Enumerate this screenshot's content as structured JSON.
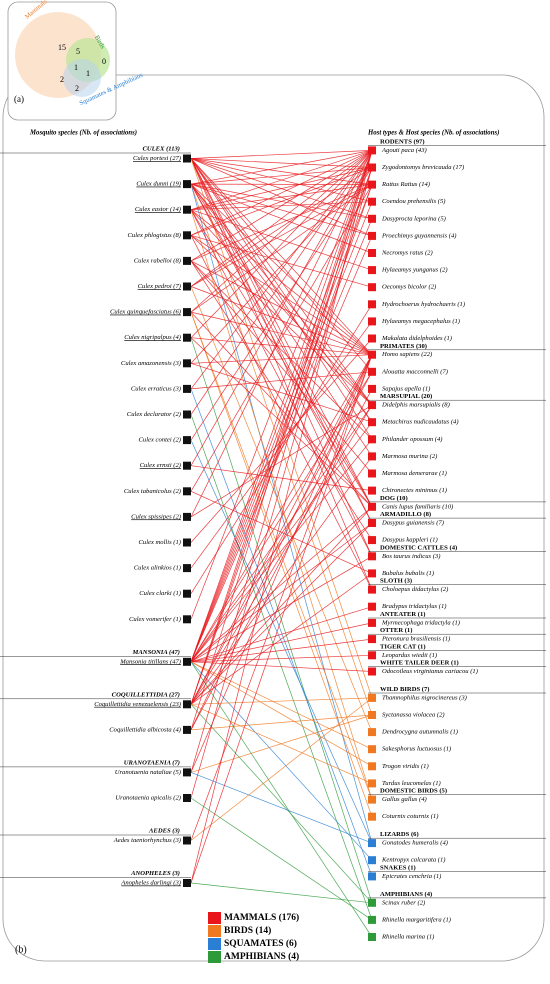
{
  "venn": {
    "label": "(a)",
    "sets": [
      "Mammals",
      "Birds",
      "Squamates & Amphibians"
    ],
    "counts": [
      "15",
      "5",
      "0",
      "1",
      "1",
      "2",
      "2"
    ]
  },
  "panel": {
    "label": "(b)",
    "left_header": "Mosquito species (Nb. of associations)",
    "right_header": "Host types & Host species (Nb. of associations)"
  },
  "left": [
    {
      "text": "CULEX (113)",
      "group": true
    },
    {
      "text": "Culex portesi (27)",
      "u": true
    },
    {
      "text": "Culex dunni (19)",
      "u": true
    },
    {
      "text": "Culex eastor (14)",
      "u": true
    },
    {
      "text": "Culex phlogistus (8)"
    },
    {
      "text": "Culex rabelloi (8)"
    },
    {
      "text": "Culex pedroi (7)",
      "u": true
    },
    {
      "text": "Culex quinquefasciatus (6)",
      "u": true
    },
    {
      "text": "Culex nigripalpus (4)",
      "u": true
    },
    {
      "text": "Culex amazonensis (3)"
    },
    {
      "text": "Culex erraticus (3)"
    },
    {
      "text": "Culex declarator (2)"
    },
    {
      "text": "Culex contei (2)"
    },
    {
      "text": "Culex ernsti (2)",
      "u": true
    },
    {
      "text": "Culex tabanicolus (2)"
    },
    {
      "text": "Culex spissipes (2)",
      "u": true
    },
    {
      "text": "Culex mollis (1)"
    },
    {
      "text": "Culex alinkios (1)"
    },
    {
      "text": "Culex clarki (1)"
    },
    {
      "text": "Culex vomerifer (1)"
    },
    {
      "text": "MANSONIA (47)",
      "group": true
    },
    {
      "text": "Mansonia titillans (47)",
      "u": true
    },
    {
      "text": "COQUILLETTIDIA (27)",
      "group": true
    },
    {
      "text": "Coquillettidia venezuelensis (23)",
      "u": true
    },
    {
      "text": "Coquillettidia albicosta (4)"
    },
    {
      "text": "URANOTAENIA (7)",
      "group": true
    },
    {
      "text": "Uranotaenia nataliae (5)"
    },
    {
      "text": "Uranotaenia apicalis (2)"
    },
    {
      "text": "AEDES (3)",
      "group": true
    },
    {
      "text": "Aedes taeniorhynchus (3)"
    },
    {
      "text": "ANOPHELES (3)",
      "group": true
    },
    {
      "text": "Anopheles darlingi (3)",
      "u": true
    }
  ],
  "right": [
    {
      "text": "RODENTS (97)",
      "group": true,
      "class": 0
    },
    {
      "text": "Agouti paca (43)",
      "class": 0
    },
    {
      "text": "Zygodontomys brevicauda (17)",
      "class": 0
    },
    {
      "text": "Rattus Rattus (14)",
      "class": 0
    },
    {
      "text": "Coendou prehensilis (5)",
      "class": 0
    },
    {
      "text": "Dasyprocta leporina (5)",
      "class": 0
    },
    {
      "text": "Proechimys guyannensis (4)",
      "class": 0
    },
    {
      "text": "Necromys ratus (2)",
      "class": 0
    },
    {
      "text": "Hylaeamys yunganus (2)",
      "class": 0
    },
    {
      "text": "Oecomys bicolor (2)",
      "class": 0
    },
    {
      "text": "Hydrochoerus hydrochaeris (1)",
      "class": 0
    },
    {
      "text": "Hylaeamys megacephalus (1)",
      "class": 0
    },
    {
      "text": "Makalata didelphoides (1)",
      "class": 0
    },
    {
      "text": "PRIMATES (30)",
      "group": true,
      "class": 0
    },
    {
      "text": "Homo sapiens (22)",
      "class": 0
    },
    {
      "text": "Alouatta macconnelli (7)",
      "class": 0
    },
    {
      "text": "Sapajus apella (1)",
      "class": 0
    },
    {
      "text": "MARSUPIAL (20)",
      "group": true,
      "class": 0
    },
    {
      "text": "Didelphis marsupialis (8)",
      "class": 0
    },
    {
      "text": "Metachirus nudicaudatus (4)",
      "class": 0
    },
    {
      "text": "Philander opossum (4)",
      "class": 0
    },
    {
      "text": "Marmosa murina (2)",
      "class": 0
    },
    {
      "text": "Marmosa demerarae (1)",
      "class": 0
    },
    {
      "text": "Chironectes minimus (1)",
      "class": 0
    },
    {
      "text": "DOG (10)",
      "group": true,
      "class": 0
    },
    {
      "text": "Canis lupus familiaris (10)",
      "class": 0
    },
    {
      "text": "ARMADILLO (8)",
      "group": true,
      "class": 0
    },
    {
      "text": "Dasypus guianensis (7)",
      "class": 0
    },
    {
      "text": "Dasypus kappleri (1)",
      "class": 0
    },
    {
      "text": "DOMESTIC CATTLES (4)",
      "group": true,
      "class": 0
    },
    {
      "text": "Bos taurus indicus (3)",
      "class": 0
    },
    {
      "text": "Bubalus bubalis (1)",
      "class": 0
    },
    {
      "text": "SLOTH (3)",
      "group": true,
      "class": 0
    },
    {
      "text": "Choloepus didactylus (2)",
      "class": 0
    },
    {
      "text": "Bradypus tridactylus (1)",
      "class": 0
    },
    {
      "text": "ANTEATER (1)",
      "group": true,
      "class": 0
    },
    {
      "text": "Myrmecophaga tridactyla (1)",
      "class": 0
    },
    {
      "text": "OTTER (1)",
      "group": true,
      "class": 0
    },
    {
      "text": "Pteronura brasiliensis (1)",
      "class": 0
    },
    {
      "text": "TIGER CAT (1)",
      "group": true,
      "class": 0
    },
    {
      "text": "Leopardus wiedii (1)",
      "class": 0
    },
    {
      "text": "WHITE TAILER DEER (1)",
      "group": true,
      "class": 0
    },
    {
      "text": "Odocoileus virginianus cariacou (1)",
      "class": 0
    },
    {
      "text": "WILD BIRDS (7)",
      "group": true,
      "class": 1
    },
    {
      "text": "Thamnophilus nigrocinereus (3)",
      "class": 1
    },
    {
      "text": "Syctanassa violacea (2)",
      "class": 1
    },
    {
      "text": "Dendrocygna autumnalis (1)",
      "class": 1
    },
    {
      "text": "Sakesphorus luctuosus (1)",
      "class": 1
    },
    {
      "text": "Trogon viridis (1)",
      "class": 1
    },
    {
      "text": "Turdus leucomelas (1)",
      "class": 1
    },
    {
      "text": "DOMESTIC BIRDS (5)",
      "group": true,
      "class": 1
    },
    {
      "text": "Gallus gallus (4)",
      "class": 1
    },
    {
      "text": "Coturnix coturnix (1)",
      "class": 1
    },
    {
      "text": "LIZARDS (6)",
      "group": true,
      "class": 2
    },
    {
      "text": "Gonatodes humeralis (4)",
      "class": 2
    },
    {
      "text": "Kentropyx calcarata (1)",
      "class": 2
    },
    {
      "text": "SNAKES (1)",
      "group": true,
      "class": 2
    },
    {
      "text": "Epicrates cenchria (1)",
      "class": 2
    },
    {
      "text": "AMPHIBIANS (4)",
      "group": true,
      "class": 3
    },
    {
      "text": "Scinax ruber (2)",
      "class": 3
    },
    {
      "text": "Rhinella margaritifera (1)",
      "class": 3
    },
    {
      "text": "Rhinella marina (1)",
      "class": 3
    }
  ],
  "classes": [
    {
      "name": "MAMMALS (176)",
      "color": "#e8161b"
    },
    {
      "name": "BIRDS (14)",
      "color": "#f07820"
    },
    {
      "name": "SQUAMATES (6)",
      "color": "#2a7fd4"
    },
    {
      "name": "AMPHIBIANS (4)",
      "color": "#2f9a3a"
    }
  ],
  "links": [
    [
      1,
      1
    ],
    [
      1,
      2
    ],
    [
      1,
      3
    ],
    [
      1,
      4
    ],
    [
      1,
      5
    ],
    [
      1,
      6
    ],
    [
      1,
      14
    ],
    [
      1,
      15
    ],
    [
      1,
      18
    ],
    [
      1,
      19
    ],
    [
      1,
      20
    ],
    [
      1,
      25
    ],
    [
      1,
      27
    ],
    [
      1,
      30
    ],
    [
      1,
      33
    ],
    [
      1,
      44
    ],
    [
      2,
      1
    ],
    [
      2,
      2
    ],
    [
      2,
      3
    ],
    [
      2,
      5
    ],
    [
      2,
      6
    ],
    [
      2,
      7
    ],
    [
      2,
      14
    ],
    [
      2,
      18
    ],
    [
      2,
      19
    ],
    [
      2,
      21
    ],
    [
      2,
      25
    ],
    [
      2,
      27
    ],
    [
      2,
      45
    ],
    [
      2,
      54
    ],
    [
      3,
      1
    ],
    [
      3,
      2
    ],
    [
      3,
      3
    ],
    [
      3,
      4
    ],
    [
      3,
      8
    ],
    [
      3,
      14
    ],
    [
      3,
      18
    ],
    [
      3,
      25
    ],
    [
      3,
      30
    ],
    [
      3,
      51
    ],
    [
      4,
      1
    ],
    [
      4,
      2
    ],
    [
      4,
      9
    ],
    [
      4,
      14
    ],
    [
      4,
      18
    ],
    [
      4,
      33
    ],
    [
      5,
      1
    ],
    [
      5,
      3
    ],
    [
      5,
      14
    ],
    [
      5,
      20
    ],
    [
      5,
      22
    ],
    [
      5,
      28
    ],
    [
      6,
      1
    ],
    [
      6,
      2
    ],
    [
      6,
      3
    ],
    [
      6,
      14
    ],
    [
      6,
      46
    ],
    [
      7,
      1
    ],
    [
      7,
      3
    ],
    [
      7,
      14
    ],
    [
      7,
      25
    ],
    [
      7,
      51
    ],
    [
      7,
      52
    ],
    [
      8,
      1
    ],
    [
      8,
      14
    ],
    [
      8,
      25
    ],
    [
      8,
      59
    ],
    [
      9,
      2
    ],
    [
      9,
      14
    ],
    [
      9,
      19
    ],
    [
      10,
      1
    ],
    [
      10,
      15
    ],
    [
      10,
      57
    ],
    [
      11,
      1
    ],
    [
      11,
      60
    ],
    [
      12,
      2
    ],
    [
      12,
      54
    ],
    [
      13,
      1
    ],
    [
      13,
      23
    ],
    [
      14,
      3
    ],
    [
      14,
      31
    ],
    [
      15,
      1
    ],
    [
      15,
      18
    ],
    [
      16,
      12
    ],
    [
      17,
      11
    ],
    [
      18,
      10
    ],
    [
      19,
      1
    ],
    [
      21,
      1
    ],
    [
      21,
      2
    ],
    [
      21,
      3
    ],
    [
      21,
      4
    ],
    [
      21,
      5
    ],
    [
      21,
      6
    ],
    [
      21,
      14
    ],
    [
      21,
      15
    ],
    [
      21,
      18
    ],
    [
      21,
      19
    ],
    [
      21,
      20
    ],
    [
      21,
      25
    ],
    [
      21,
      27
    ],
    [
      21,
      30
    ],
    [
      21,
      34
    ],
    [
      21,
      36
    ],
    [
      21,
      38
    ],
    [
      21,
      40
    ],
    [
      21,
      42
    ],
    [
      21,
      47
    ],
    [
      21,
      48
    ],
    [
      21,
      61
    ],
    [
      21,
      55
    ],
    [
      23,
      1
    ],
    [
      23,
      2
    ],
    [
      23,
      3
    ],
    [
      23,
      14
    ],
    [
      23,
      15
    ],
    [
      23,
      18
    ],
    [
      23,
      21
    ],
    [
      23,
      25
    ],
    [
      23,
      27
    ],
    [
      23,
      31
    ],
    [
      23,
      44
    ],
    [
      23,
      49
    ],
    [
      23,
      59
    ],
    [
      24,
      1
    ],
    [
      24,
      14
    ],
    [
      24,
      16
    ],
    [
      24,
      45
    ],
    [
      26,
      1
    ],
    [
      26,
      14
    ],
    [
      26,
      45
    ],
    [
      26,
      54
    ],
    [
      27,
      2
    ],
    [
      27,
      60
    ],
    [
      29,
      14
    ],
    [
      29,
      44
    ],
    [
      31,
      1
    ],
    [
      31,
      14
    ],
    [
      31,
      59
    ]
  ]
}
